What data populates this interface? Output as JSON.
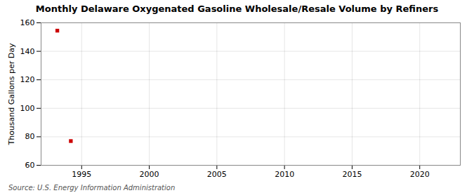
{
  "chart_data": {
    "type": "scatter",
    "title": "Monthly Delaware Oxygenated Gasoline Wholesale/Resale Volume by Refiners",
    "ylabel": "Thousand Gallons per Day",
    "annotations": [
      "Source: U.S. Energy Information Administration"
    ],
    "x": [
      1993.2,
      1994.2
    ],
    "values": [
      154.5,
      77.0
    ],
    "color": "#cc0000",
    "marker": "square",
    "xlim": [
      1992.0,
      2023.0
    ],
    "ylim": [
      60,
      160
    ],
    "xticks": [
      1995,
      2000,
      2005,
      2010,
      2015,
      2020
    ],
    "yticks": [
      60,
      80,
      100,
      120,
      140,
      160
    ],
    "grid": true
  }
}
